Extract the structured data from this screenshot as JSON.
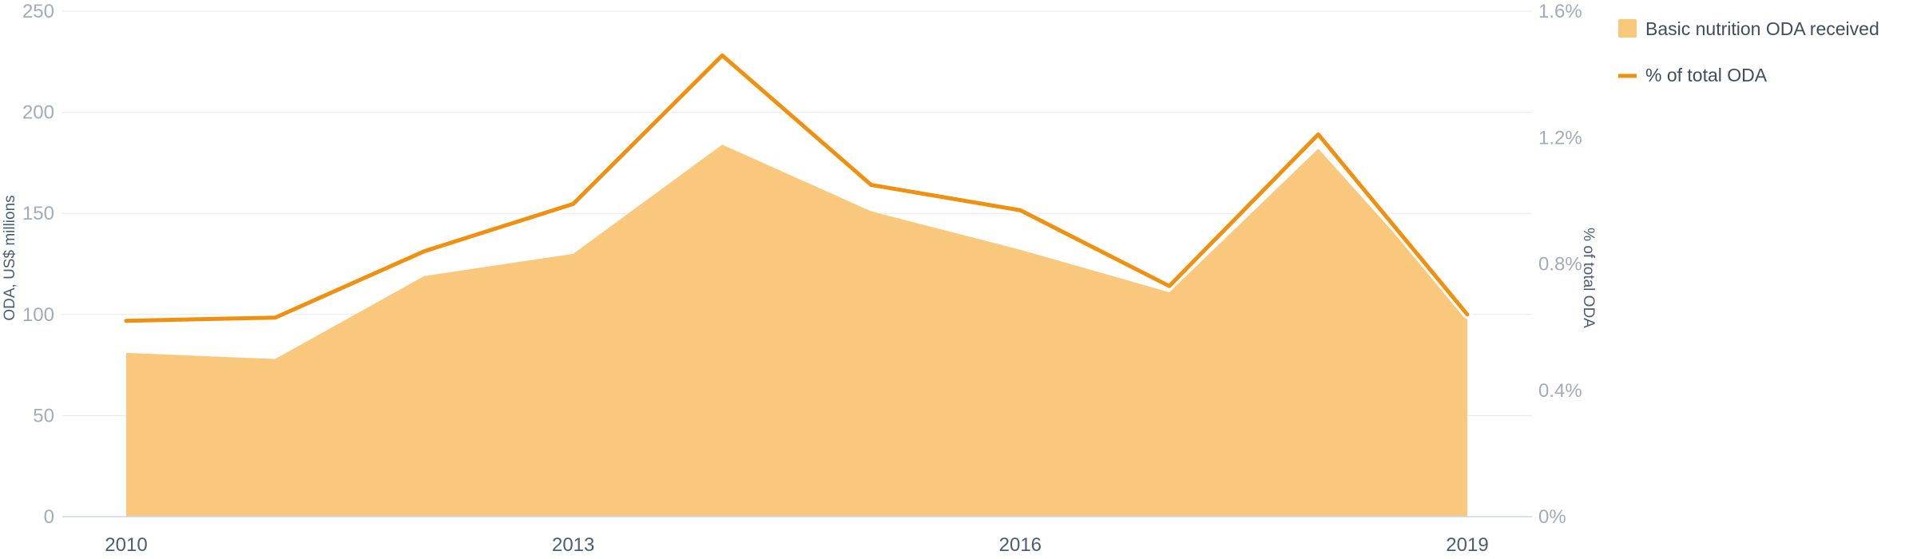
{
  "chart_data": {
    "type": "area",
    "x": [
      2010,
      2011,
      2012,
      2013,
      2014,
      2015,
      2016,
      2017,
      2018,
      2019
    ],
    "x_tick_labels": [
      "2010",
      "2013",
      "2016",
      "2019"
    ],
    "series": [
      {
        "name": "Basic nutrition ODA received",
        "type": "area",
        "axis": "left",
        "color": "#fac87d",
        "values": [
          81,
          78,
          119,
          130,
          184,
          151,
          132,
          111,
          182,
          100
        ]
      },
      {
        "name": "% of total ODA",
        "type": "line",
        "axis": "right",
        "color": "#f0900f",
        "values": [
          0.62,
          0.63,
          0.84,
          0.99,
          1.46,
          1.05,
          0.97,
          0.73,
          1.21,
          0.64
        ]
      }
    ],
    "y_left": {
      "label": "ODA, US$ millions",
      "ticks": [
        "0",
        "50",
        "100",
        "150",
        "200",
        "250"
      ],
      "range": [
        0,
        250
      ]
    },
    "y_right": {
      "label": "% of total ODA",
      "ticks": [
        "0%",
        "0.4%",
        "0.8%",
        "1.2%",
        "1.6%"
      ],
      "range": [
        0,
        1.6
      ]
    },
    "legend_position": "top-right",
    "grid": true
  }
}
